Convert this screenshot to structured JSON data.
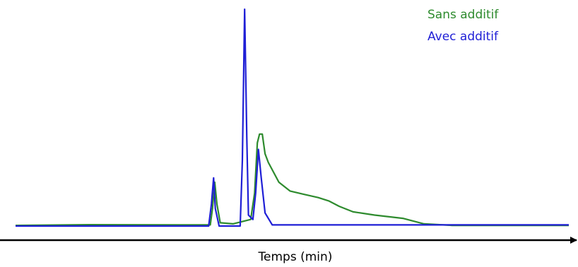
{
  "chart_data": {
    "type": "line",
    "xlabel": "Temps (min)",
    "xlim": [
      0,
      100
    ],
    "ylim": [
      0,
      100
    ],
    "legend": "top-right",
    "series": [
      {
        "name": "Sans additif",
        "color": "#2e8b2e",
        "x": [
          0,
          13.2,
          35.2,
          35.6,
          36.0,
          36.4,
          37.0,
          39.3,
          42.5,
          43.2,
          43.7,
          44.1,
          44.6,
          45.1,
          45.7,
          47.6,
          49.6,
          52.1,
          54.7,
          56.6,
          58.5,
          61.0,
          64.9,
          70.0,
          73.8,
          78.9,
          100
        ],
        "values": [
          0.3,
          0.6,
          0.5,
          8,
          20,
          10,
          1.5,
          1,
          3,
          15,
          38,
          42,
          42,
          33,
          29,
          20,
          16,
          14.5,
          13,
          11.5,
          9,
          6.5,
          5,
          3.5,
          1,
          0.3,
          0.3
        ]
      },
      {
        "name": "Avec additif",
        "color": "#1f1fd6",
        "x": [
          0,
          34.9,
          35.4,
          35.8,
          36.1,
          36.8,
          40.6,
          41.0,
          41.4,
          41.8,
          42.1,
          42.9,
          43.4,
          43.9,
          44.4,
          45.1,
          46.4,
          100
        ],
        "values": [
          0,
          0,
          10,
          22,
          8,
          0,
          0,
          30,
          99,
          40,
          5,
          3,
          15,
          35,
          22,
          6,
          0.5,
          0.5
        ]
      }
    ]
  }
}
